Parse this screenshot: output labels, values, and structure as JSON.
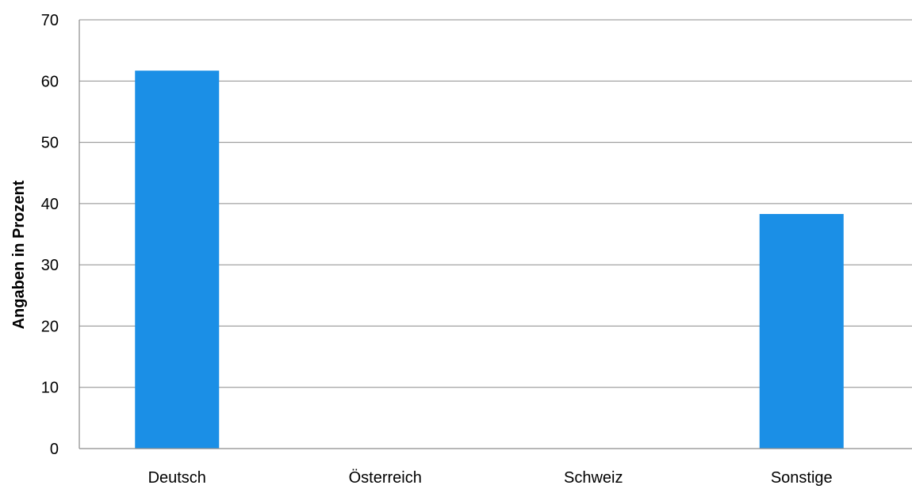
{
  "chart_data": {
    "type": "bar",
    "title": "",
    "xlabel": "",
    "ylabel": "Angaben in Prozent",
    "categories": [
      "Deutsch",
      "Österreich",
      "Schweiz",
      "Sonstige"
    ],
    "values": [
      61.7,
      0,
      0,
      38.3
    ],
    "ylim": [
      0,
      70
    ],
    "yticks": [
      0,
      10,
      20,
      30,
      40,
      50,
      60,
      70
    ],
    "grid": true,
    "legend": "none",
    "colors": {
      "bar": "#1b8fe6",
      "grid": "#8c8c8c"
    }
  }
}
